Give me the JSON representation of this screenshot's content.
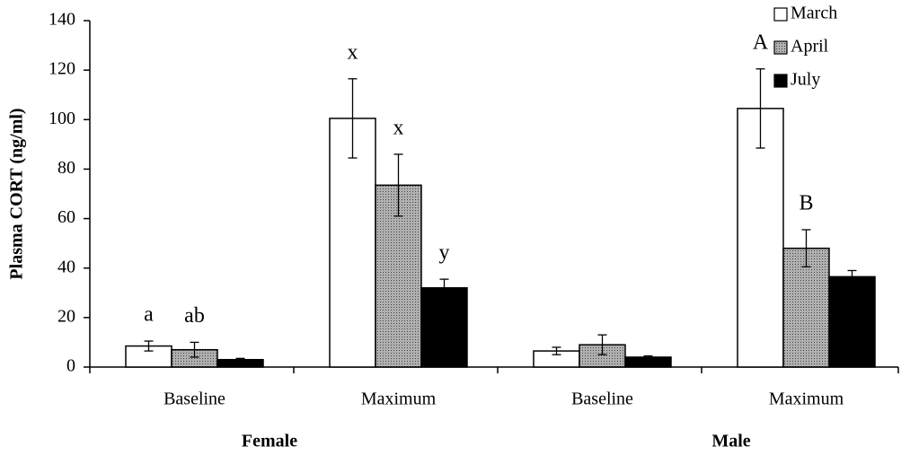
{
  "chart_data": {
    "type": "bar",
    "ylabel": "Plasma CORT (ng/ml)",
    "categories": [
      "Baseline",
      "Maximum",
      "Baseline",
      "Maximum"
    ],
    "groups": [
      "Female",
      "Male"
    ],
    "series": [
      {
        "name": "March",
        "color": "#ffffff",
        "values": [
          8.5,
          100.5,
          6.5,
          104.5
        ],
        "errors": [
          2,
          16,
          1.5,
          16
        ],
        "labels": [
          "a",
          "x",
          null,
          "A"
        ]
      },
      {
        "name": "April",
        "color": "#9a9a9a",
        "values": [
          7,
          73.5,
          9,
          48
        ],
        "errors": [
          3,
          12.5,
          4,
          7.5
        ],
        "labels": [
          "ab",
          "x",
          null,
          "B"
        ]
      },
      {
        "name": "July",
        "color": "#000000",
        "values": [
          3,
          32,
          4,
          36.5
        ],
        "errors": [
          0.5,
          3.5,
          0.5,
          2.5
        ],
        "labels": [
          null,
          "y",
          null,
          null
        ]
      }
    ],
    "ylim": [
      0,
      140
    ],
    "yticks": [
      0,
      20,
      40,
      60,
      80,
      100,
      120,
      140
    ],
    "legend": "upper right"
  }
}
